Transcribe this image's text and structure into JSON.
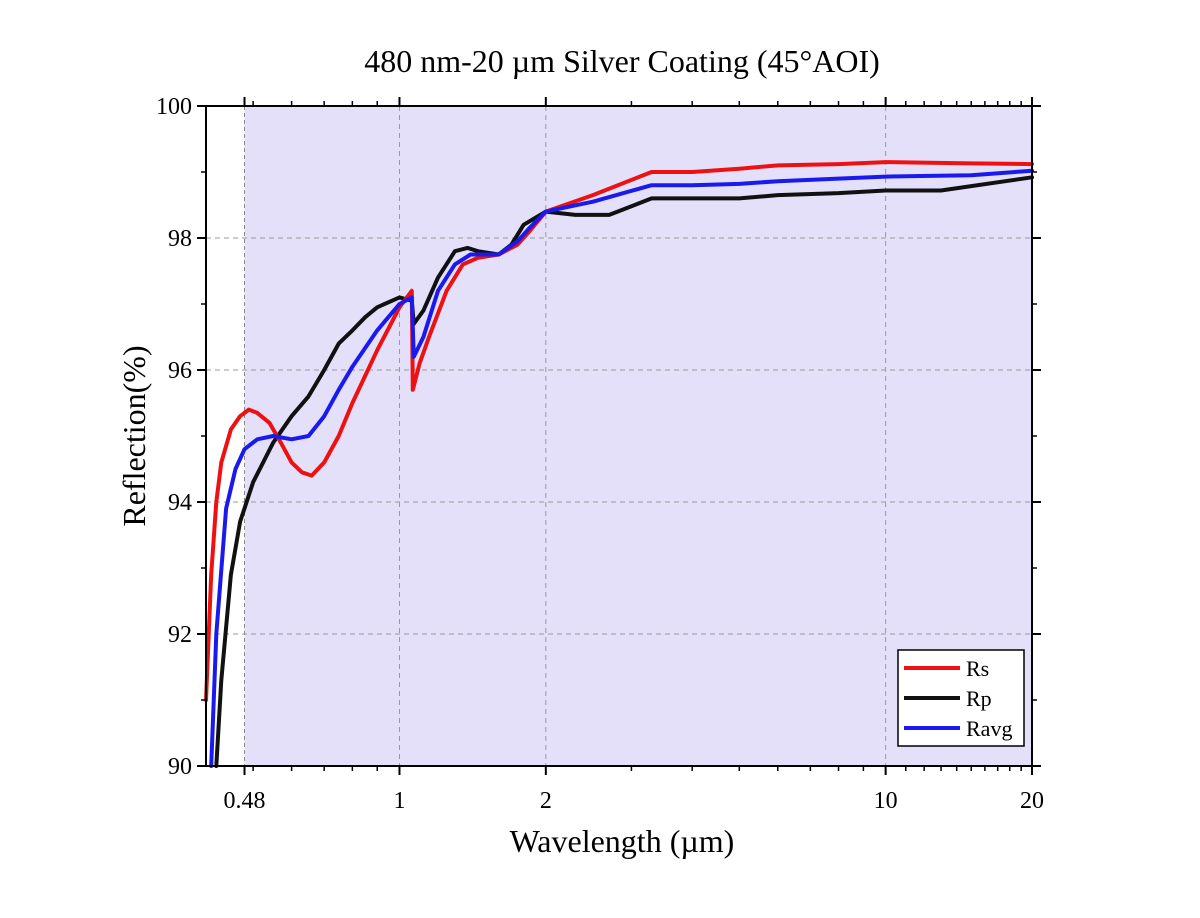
{
  "chart_data": {
    "type": "line",
    "title": "480 nm-20 µm Silver Coating (45°AOI)",
    "xlabel": "Wavelength (µm)",
    "ylabel": "Reflection(%)",
    "x_scale": "log",
    "xlim": [
      0.4,
      20
    ],
    "ylim": [
      90,
      100
    ],
    "x_ticks": [
      0.48,
      1,
      2,
      10,
      20
    ],
    "x_tick_labels": [
      "0.48",
      "1",
      "2",
      "10",
      "20"
    ],
    "y_ticks": [
      90,
      92,
      94,
      96,
      98,
      100
    ],
    "y_tick_labels": [
      "90",
      "92",
      "94",
      "96",
      "98",
      "100"
    ],
    "grid": true,
    "shaded_band": {
      "from": 0.48,
      "to": 20,
      "color": "#e4e0fa"
    },
    "legend_position": "bottom-right",
    "series": [
      {
        "name": "Rs",
        "color": "#ee1111",
        "points": [
          [
            0.4,
            91.0
          ],
          [
            0.41,
            92.9
          ],
          [
            0.42,
            94.0
          ],
          [
            0.43,
            94.6
          ],
          [
            0.45,
            95.1
          ],
          [
            0.47,
            95.3
          ],
          [
            0.49,
            95.4
          ],
          [
            0.51,
            95.35
          ],
          [
            0.54,
            95.2
          ],
          [
            0.57,
            94.9
          ],
          [
            0.6,
            94.6
          ],
          [
            0.63,
            94.45
          ],
          [
            0.66,
            94.4
          ],
          [
            0.7,
            94.6
          ],
          [
            0.75,
            95.0
          ],
          [
            0.8,
            95.5
          ],
          [
            0.9,
            96.3
          ],
          [
            1.0,
            96.95
          ],
          [
            1.06,
            97.2
          ],
          [
            1.065,
            95.7
          ],
          [
            1.1,
            96.1
          ],
          [
            1.15,
            96.5
          ],
          [
            1.25,
            97.2
          ],
          [
            1.35,
            97.6
          ],
          [
            1.45,
            97.7
          ],
          [
            1.6,
            97.75
          ],
          [
            1.75,
            97.9
          ],
          [
            1.85,
            98.1
          ],
          [
            2.0,
            98.4
          ],
          [
            2.5,
            98.65
          ],
          [
            3.3,
            99.0
          ],
          [
            4.0,
            99.0
          ],
          [
            5.0,
            99.05
          ],
          [
            6.0,
            99.1
          ],
          [
            8.0,
            99.12
          ],
          [
            10.0,
            99.15
          ],
          [
            15.0,
            99.13
          ],
          [
            20.0,
            99.12
          ]
        ]
      },
      {
        "name": "Rp",
        "color": "#111111",
        "points": [
          [
            0.42,
            90.0
          ],
          [
            0.43,
            91.3
          ],
          [
            0.45,
            92.9
          ],
          [
            0.47,
            93.7
          ],
          [
            0.5,
            94.3
          ],
          [
            0.55,
            94.9
          ],
          [
            0.6,
            95.3
          ],
          [
            0.65,
            95.6
          ],
          [
            0.7,
            96.0
          ],
          [
            0.75,
            96.4
          ],
          [
            0.8,
            96.6
          ],
          [
            0.85,
            96.8
          ],
          [
            0.9,
            96.95
          ],
          [
            1.0,
            97.1
          ],
          [
            1.06,
            97.05
          ],
          [
            1.07,
            96.7
          ],
          [
            1.12,
            96.9
          ],
          [
            1.2,
            97.4
          ],
          [
            1.3,
            97.8
          ],
          [
            1.38,
            97.85
          ],
          [
            1.45,
            97.8
          ],
          [
            1.6,
            97.75
          ],
          [
            1.7,
            97.9
          ],
          [
            1.8,
            98.2
          ],
          [
            2.0,
            98.4
          ],
          [
            2.3,
            98.35
          ],
          [
            2.7,
            98.35
          ],
          [
            3.3,
            98.6
          ],
          [
            4.0,
            98.6
          ],
          [
            5.0,
            98.6
          ],
          [
            6.0,
            98.65
          ],
          [
            8.0,
            98.68
          ],
          [
            10.0,
            98.72
          ],
          [
            13.0,
            98.72
          ],
          [
            20.0,
            98.92
          ]
        ]
      },
      {
        "name": "Ravg",
        "color": "#1a1aee",
        "points": [
          [
            0.41,
            90.0
          ],
          [
            0.42,
            92.0
          ],
          [
            0.44,
            93.9
          ],
          [
            0.46,
            94.5
          ],
          [
            0.48,
            94.8
          ],
          [
            0.51,
            94.95
          ],
          [
            0.55,
            95.0
          ],
          [
            0.6,
            94.95
          ],
          [
            0.65,
            95.0
          ],
          [
            0.7,
            95.3
          ],
          [
            0.75,
            95.7
          ],
          [
            0.8,
            96.05
          ],
          [
            0.9,
            96.6
          ],
          [
            1.0,
            97.0
          ],
          [
            1.06,
            97.1
          ],
          [
            1.07,
            96.2
          ],
          [
            1.12,
            96.5
          ],
          [
            1.2,
            97.2
          ],
          [
            1.3,
            97.6
          ],
          [
            1.4,
            97.75
          ],
          [
            1.6,
            97.75
          ],
          [
            1.75,
            97.95
          ],
          [
            1.85,
            98.15
          ],
          [
            2.0,
            98.4
          ],
          [
            2.5,
            98.55
          ],
          [
            3.3,
            98.8
          ],
          [
            4.0,
            98.8
          ],
          [
            5.0,
            98.82
          ],
          [
            6.0,
            98.86
          ],
          [
            8.0,
            98.9
          ],
          [
            10.0,
            98.93
          ],
          [
            15.0,
            98.95
          ],
          [
            20.0,
            99.02
          ]
        ]
      }
    ]
  }
}
